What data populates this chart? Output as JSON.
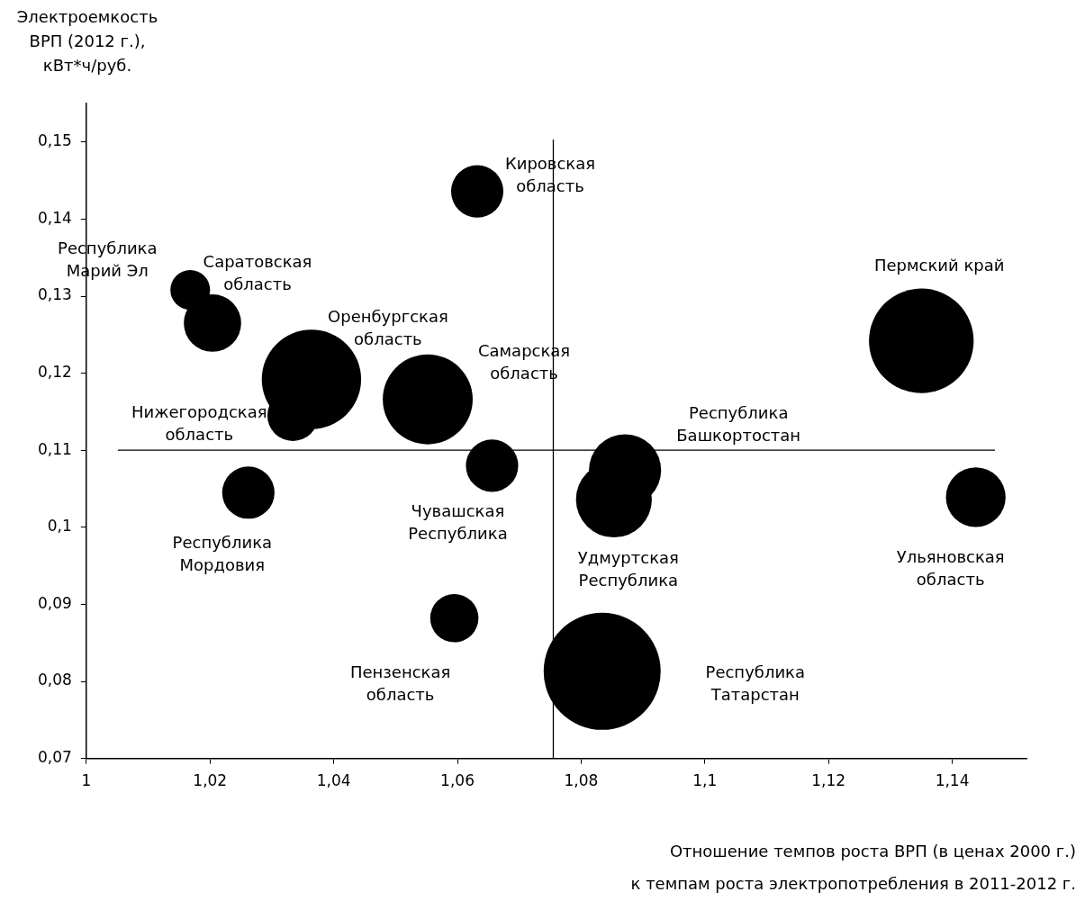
{
  "chart_data": {
    "type": "bubble",
    "xlabel": "Отношение темпов роста ВРП (в ценах 2000 г.)\nк темпам роста электропотребления в 2011-2012 г.",
    "ylabel": "Электроемкость\nВРП (2012 г.),\nкВт*ч/руб.",
    "xlim": [
      1,
      1.152
    ],
    "xticks": [
      1,
      {
        "value": 1.02,
        "label": "1,02"
      },
      {
        "value": 1.04,
        "label": "1,04"
      },
      {
        "value": 1.06,
        "label": "1,06"
      },
      {
        "value": 1.08,
        "label": "1,08"
      },
      {
        "value": 1.1,
        "label": "1,1"
      },
      {
        "value": 1.12,
        "label": "1,12"
      },
      {
        "value": 1.14,
        "label": "1,14"
      }
    ],
    "ylim": [
      0.07,
      0.155
    ],
    "yticks": [
      {
        "value": 0.07,
        "label": "0,07"
      },
      {
        "value": 0.08,
        "label": "0,08"
      },
      {
        "value": 0.09,
        "label": "0,09"
      },
      {
        "value": 0.1,
        "label": "0,1"
      },
      {
        "value": 0.11,
        "label": "0,11"
      },
      {
        "value": 0.12,
        "label": "0,12"
      },
      {
        "value": 0.13,
        "label": "0,13"
      },
      {
        "value": 0.14,
        "label": "0,14"
      },
      {
        "value": 0.15,
        "label": "0,15"
      }
    ],
    "grid": false,
    "legend": false,
    "ref_lines": [
      {
        "axis": "y",
        "value": 0.11,
        "color": "#000000"
      },
      {
        "axis": "x",
        "value": 1.0755,
        "color": "#000000"
      }
    ],
    "series": [
      {
        "name": "Республика\nМарий Эл",
        "color": "#000000",
        "x": [
          1.0168
        ],
        "values": [
          0.1308
        ],
        "sizes": [
          0.115
        ]
      },
      {
        "name": "Саратовская\nобласть",
        "color": "#000000",
        "x": [
          1.0204
        ],
        "values": [
          0.1265
        ],
        "sizes": [
          0.24
        ]
      },
      {
        "name": "Оренбургская\nобласть",
        "color": "#000000",
        "x": [
          1.0364
        ],
        "values": [
          0.1192
        ],
        "sizes": [
          0.72
        ]
      },
      {
        "name": "Нижегородская\nобласть",
        "color": "#000000",
        "x": [
          1.0334
        ],
        "values": [
          0.1145
        ],
        "sizes": [
          0.19
        ]
      },
      {
        "name": "Самарская\nобласть",
        "color": "#000000",
        "x": [
          1.0552
        ],
        "values": [
          0.1166
        ],
        "sizes": [
          0.59
        ]
      },
      {
        "name": "Кировская\nобласть",
        "color": "#000000",
        "x": [
          1.0632
        ],
        "values": [
          0.1436
        ],
        "sizes": [
          0.2
        ]
      },
      {
        "name": "Чувашская\nРеспублика",
        "color": "#000000",
        "x": [
          1.0656
        ],
        "values": [
          0.108
        ],
        "sizes": [
          0.2
        ]
      },
      {
        "name": "Республика\nМордовия",
        "color": "#000000",
        "x": [
          1.0262
        ],
        "values": [
          0.1045
        ],
        "sizes": [
          0.2
        ]
      },
      {
        "name": "Пензенская\nобласть",
        "color": "#000000",
        "x": [
          1.0595
        ],
        "values": [
          0.0882
        ],
        "sizes": [
          0.17
        ]
      },
      {
        "name": "Республика\nБашкортостан",
        "color": "#000000",
        "x": [
          1.0871
        ],
        "values": [
          0.1074
        ],
        "sizes": [
          0.38
        ]
      },
      {
        "name": "Удмуртская\nРеспублика",
        "color": "#000000",
        "x": [
          1.0853
        ],
        "values": [
          0.1036
        ],
        "sizes": [
          0.42
        ]
      },
      {
        "name": "Республика\nТатарстан",
        "color": "#000000",
        "x": [
          1.0834
        ],
        "values": [
          0.0813
        ],
        "sizes": [
          1
        ]
      },
      {
        "name": "Пермский край",
        "color": "#000000",
        "x": [
          1.135
        ],
        "values": [
          0.1242
        ],
        "sizes": [
          0.8
        ]
      },
      {
        "name": "Ульяновская\nобласть",
        "color": "#000000",
        "x": [
          1.1438
        ],
        "values": [
          0.1039
        ],
        "sizes": [
          0.26
        ]
      }
    ]
  }
}
